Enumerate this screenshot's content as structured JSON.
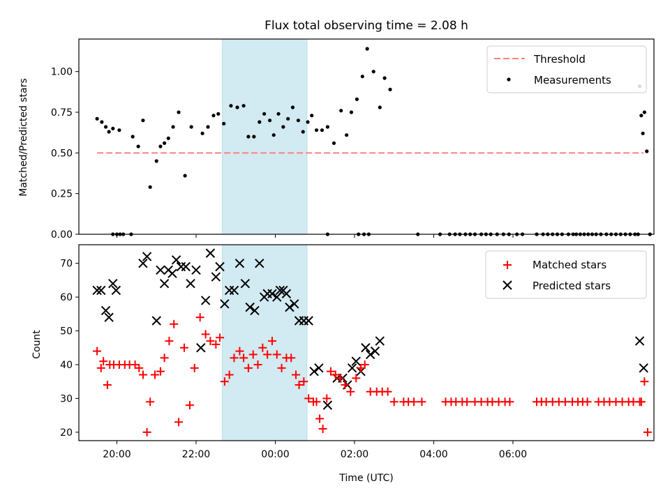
{
  "chart_data": [
    {
      "type": "scatter",
      "title": "Flux total observing time = 2.08 h",
      "xlabel": "",
      "ylabel": "Matched/Predicted stars",
      "xlim": [
        -0.48,
        6.78
      ],
      "ylim": [
        0,
        1.2
      ],
      "yticks": [
        "0.00",
        "0.25",
        "0.50",
        "0.75",
        "1.00"
      ],
      "threshold": {
        "name": "Threshold",
        "value": 0.5,
        "x_range": [
          -0.25,
          6.65
        ],
        "color": "#ff7f7f"
      },
      "legend_position": "upper right",
      "legend": [
        "Threshold",
        "Measurements"
      ],
      "highlight_span": [
        1.33,
        2.4
      ],
      "series": [
        {
          "name": "Measurements",
          "color": "#000000",
          "x": [
            -0.25,
            -0.19,
            -0.14,
            -0.1,
            -0.05,
            0.03,
            0.2,
            0.27,
            0.33,
            0.42,
            0.5,
            0.55,
            0.6,
            0.65,
            0.71,
            0.78,
            0.86,
            0.94,
            1.08,
            1.15,
            1.22,
            1.28,
            1.35,
            1.44,
            1.52,
            1.6,
            1.66,
            1.73,
            1.8,
            1.86,
            1.93,
            1.98,
            2.04,
            2.1,
            2.16,
            2.22,
            2.29,
            2.35,
            2.41,
            2.46,
            2.52,
            2.59,
            2.66,
            2.74,
            2.83,
            2.9,
            2.96,
            3.03,
            3.1,
            3.16,
            3.24,
            3.32,
            3.38,
            3.45,
            6.6,
            6.62,
            6.64,
            6.66,
            6.69,
            6.73
          ],
          "y": [
            0.71,
            0.69,
            0.66,
            0.63,
            0.65,
            0.64,
            0.6,
            0.54,
            0.7,
            0.29,
            0.45,
            0.54,
            0.56,
            0.59,
            0.66,
            0.75,
            0.36,
            0.66,
            0.62,
            0.66,
            0.73,
            0.74,
            0.68,
            0.79,
            0.78,
            0.79,
            0.6,
            0.6,
            0.69,
            0.74,
            0.7,
            0.61,
            0.74,
            0.66,
            0.71,
            0.78,
            0.7,
            0.63,
            0.69,
            0.73,
            0.64,
            0.64,
            0.66,
            0.56,
            0.76,
            0.61,
            0.75,
            0.83,
            0.97,
            1.14,
            1.0,
            0.78,
            0.96,
            0.89,
            0.91,
            0.73,
            0.62,
            0.75,
            0.51,
            0.0
          ],
          "zero_x": [
            -0.05,
            0.0,
            0.04,
            0.08,
            0.18,
            2.66,
            3.05,
            3.12,
            3.18,
            3.8,
            4.08,
            4.2,
            4.27,
            4.33,
            4.4,
            4.46,
            4.52,
            4.6,
            4.66,
            4.72,
            4.8,
            4.88,
            4.95,
            5.05,
            5.12,
            5.3,
            5.38,
            5.44,
            5.5,
            5.56,
            5.62,
            5.7,
            5.76,
            5.8,
            5.85,
            5.9,
            5.95,
            6.0,
            6.05,
            6.11,
            6.18,
            6.24,
            6.3,
            6.36,
            6.42,
            6.48,
            6.54,
            6.58
          ],
          "zero_x_is_zero": true
        }
      ]
    },
    {
      "type": "scatter",
      "title": "",
      "xlabel": "Time (UTC)",
      "ylabel": "Count",
      "xlim": [
        -0.48,
        6.78
      ],
      "ylim": [
        17.5,
        75.5
      ],
      "yticks": [
        "20",
        "30",
        "40",
        "50",
        "60",
        "70"
      ],
      "xticks": [
        {
          "value": 0,
          "label": "20:00"
        },
        {
          "value": 1,
          "label": "22:00"
        },
        {
          "value": 2,
          "label": "00:00"
        },
        {
          "value": 3,
          "label": "02:00"
        },
        {
          "value": 4,
          "label": "04:00"
        },
        {
          "value": 5,
          "label": "06:00"
        }
      ],
      "legend_position": "upper right",
      "legend": [
        "Matched stars",
        "Predicted stars"
      ],
      "highlight_span": [
        1.33,
        2.4
      ],
      "series": [
        {
          "name": "Matched stars",
          "marker": "+",
          "color": "#ff0000",
          "x": [
            -0.25,
            -0.2,
            -0.17,
            -0.12,
            -0.09,
            -0.04,
            0.03,
            0.1,
            0.16,
            0.23,
            0.28,
            0.33,
            0.38,
            0.42,
            0.48,
            0.55,
            0.6,
            0.66,
            0.72,
            0.78,
            0.85,
            0.92,
            0.98,
            1.05,
            1.12,
            1.18,
            1.25,
            1.3,
            1.36,
            1.42,
            1.48,
            1.55,
            1.6,
            1.66,
            1.72,
            1.78,
            1.84,
            1.9,
            1.96,
            2.02,
            2.08,
            2.14,
            2.2,
            2.26,
            2.3,
            2.36,
            2.42,
            2.48,
            2.52,
            2.56,
            2.6,
            2.65,
            2.7,
            2.76,
            2.82,
            2.88,
            2.95,
            3.02,
            3.08,
            3.13,
            3.2,
            3.28,
            3.35,
            3.42,
            3.5,
            3.62,
            3.68,
            3.75,
            3.85,
            4.15,
            4.22,
            4.28,
            4.36,
            4.42,
            4.52,
            4.6,
            4.68,
            4.74,
            4.82,
            4.9,
            4.96,
            5.3,
            5.36,
            5.42,
            5.5,
            5.58,
            5.66,
            5.75,
            5.82,
            5.88,
            5.94,
            6.08,
            6.15,
            6.22,
            6.3,
            6.38,
            6.46,
            6.52,
            6.6,
            6.62,
            6.66,
            6.7
          ],
          "y": [
            44,
            39,
            41,
            34,
            40,
            40,
            40,
            40,
            40,
            40,
            39,
            37,
            20,
            29,
            37,
            38,
            42,
            47,
            52,
            23,
            45,
            28,
            39,
            54,
            49,
            47,
            46,
            48,
            35,
            37,
            42,
            44,
            42,
            39,
            43,
            40,
            45,
            43,
            47,
            43,
            39,
            42,
            42,
            37,
            34,
            35,
            30,
            29,
            29,
            24,
            21,
            30,
            38,
            37,
            36,
            34,
            32,
            36,
            39,
            40,
            32,
            32,
            32,
            32,
            29,
            29,
            29,
            29,
            29,
            29,
            29,
            29,
            29,
            29,
            29,
            29,
            29,
            29,
            29,
            29,
            29,
            29,
            29,
            29,
            29,
            29,
            29,
            29,
            29,
            29,
            29,
            29,
            29,
            29,
            29,
            29,
            29,
            29,
            29,
            29,
            35,
            20
          ]
        },
        {
          "name": "Predicted stars",
          "marker": "x",
          "color": "#000000",
          "x": [
            -0.25,
            -0.2,
            -0.14,
            -0.1,
            -0.05,
            -0.01,
            0.33,
            0.38,
            0.5,
            0.55,
            0.6,
            0.65,
            0.7,
            0.75,
            0.81,
            0.87,
            0.93,
            1.0,
            1.06,
            1.12,
            1.18,
            1.25,
            1.3,
            1.36,
            1.42,
            1.48,
            1.55,
            1.62,
            1.68,
            1.74,
            1.8,
            1.86,
            1.9,
            1.96,
            2.02,
            2.06,
            2.1,
            2.14,
            2.18,
            2.24,
            2.3,
            2.36,
            2.42,
            2.49,
            2.55,
            2.66,
            2.78,
            2.85,
            2.91,
            2.97,
            3.02,
            3.08,
            3.14,
            3.2,
            3.26,
            3.32,
            3.4,
            3.48,
            3.82,
            6.6,
            6.65
          ],
          "y": [
            62,
            62,
            56,
            54,
            64,
            62,
            70,
            72,
            53,
            68,
            64,
            68,
            67,
            71,
            69,
            69,
            64,
            68,
            45,
            59,
            73,
            66,
            69,
            58,
            62,
            62,
            70,
            64,
            57,
            56,
            70,
            60,
            61,
            61,
            60,
            62,
            62,
            61,
            57,
            58,
            53,
            53,
            53,
            38,
            39,
            28,
            36,
            36,
            34,
            39,
            41,
            38,
            45,
            43,
            44,
            47,
            null,
            null,
            null,
            47,
            39
          ]
        }
      ]
    }
  ]
}
